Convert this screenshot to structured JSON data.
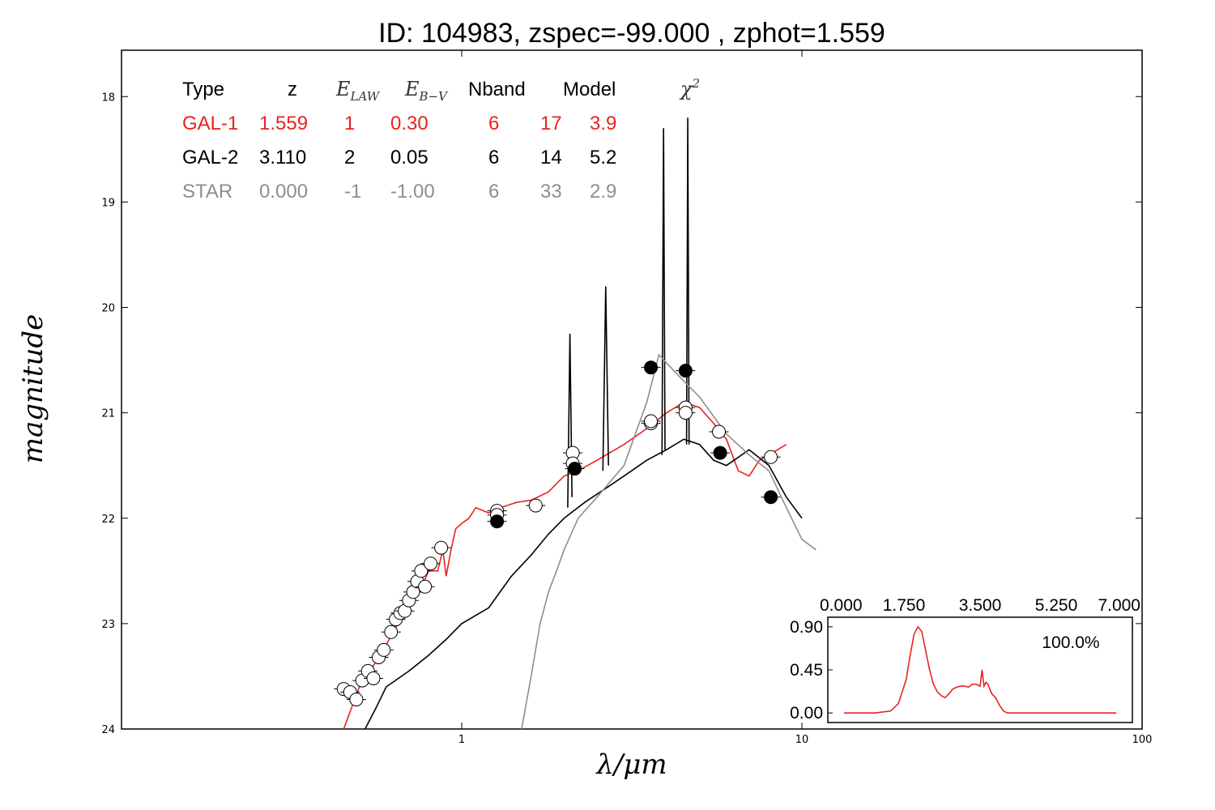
{
  "chart_data": {
    "type": "scatter",
    "title": "ID:  104983, zspec=-99.000 , zphot=1.559",
    "xlabel": "λ/μm",
    "ylabel": "magnitude",
    "x_scale": "log",
    "xlim": [
      0.1,
      100
    ],
    "ylim": [
      24,
      17.56
    ],
    "y_inverted": true,
    "xtick_labels": [
      "1",
      "10",
      "100"
    ],
    "ytick_labels": [
      "18",
      "19",
      "20",
      "21",
      "22",
      "23",
      "24"
    ],
    "colors": {
      "gal1": "#e8231f",
      "gal2": "#000000",
      "star": "#8e8e8e"
    },
    "fit_table": {
      "header": [
        "Type",
        "z",
        "E_LAW",
        "E_B-V",
        "Nband",
        "Model",
        "χ2"
      ],
      "rows": [
        {
          "name": "GAL-1",
          "cells": [
            "GAL-1",
            "1.559",
            "1",
            "0.30",
            "6",
            "17",
            "3.9"
          ]
        },
        {
          "name": "GAL-2",
          "cells": [
            "GAL-2",
            "3.110",
            "2",
            "0.05",
            "6",
            "14",
            "5.2"
          ]
        },
        {
          "name": "STAR",
          "cells": [
            "STAR",
            "0.000",
            "-1",
            "-1.00",
            "6",
            "33",
            "2.9"
          ]
        }
      ]
    },
    "series": [
      {
        "key": "gal1",
        "kind": "line",
        "points": [
          [
            0.45,
            24.0
          ],
          [
            0.5,
            23.6
          ],
          [
            0.55,
            23.4
          ],
          [
            0.6,
            23.2
          ],
          [
            0.65,
            23.0
          ],
          [
            0.7,
            22.85
          ],
          [
            0.75,
            22.7
          ],
          [
            0.8,
            22.5
          ],
          [
            0.85,
            22.5
          ],
          [
            0.88,
            22.3
          ],
          [
            0.9,
            22.55
          ],
          [
            0.93,
            22.3
          ],
          [
            0.96,
            22.1
          ],
          [
            1.0,
            22.05
          ],
          [
            1.05,
            22.0
          ],
          [
            1.1,
            21.9
          ],
          [
            1.2,
            21.95
          ],
          [
            1.3,
            21.9
          ],
          [
            1.45,
            21.85
          ],
          [
            1.6,
            21.83
          ],
          [
            1.8,
            21.75
          ],
          [
            2.0,
            21.6
          ],
          [
            2.2,
            21.55
          ],
          [
            2.5,
            21.45
          ],
          [
            3.0,
            21.3
          ],
          [
            3.5,
            21.15
          ],
          [
            4.0,
            21.0
          ],
          [
            4.5,
            20.9
          ],
          [
            5.0,
            20.95
          ],
          [
            5.5,
            21.1
          ],
          [
            6.0,
            21.25
          ],
          [
            6.5,
            21.55
          ],
          [
            7.0,
            21.6
          ],
          [
            7.5,
            21.45
          ],
          [
            8.0,
            21.4
          ],
          [
            9.0,
            21.3
          ]
        ]
      },
      {
        "key": "gal2",
        "kind": "line",
        "points": [
          [
            0.52,
            24.0
          ],
          [
            0.56,
            23.8
          ],
          [
            0.6,
            23.6
          ],
          [
            0.7,
            23.45
          ],
          [
            0.8,
            23.3
          ],
          [
            0.9,
            23.15
          ],
          [
            1.0,
            23.0
          ],
          [
            1.2,
            22.85
          ],
          [
            1.4,
            22.55
          ],
          [
            1.6,
            22.35
          ],
          [
            1.8,
            22.15
          ],
          [
            2.0,
            22.0
          ],
          [
            2.3,
            21.85
          ],
          [
            2.7,
            21.7
          ],
          [
            3.0,
            21.6
          ],
          [
            3.5,
            21.45
          ],
          [
            4.0,
            21.35
          ],
          [
            4.5,
            21.25
          ],
          [
            5.0,
            21.3
          ],
          [
            5.5,
            21.45
          ],
          [
            6.0,
            21.5
          ],
          [
            7.0,
            21.35
          ],
          [
            8.0,
            21.5
          ],
          [
            9.0,
            21.8
          ],
          [
            10.0,
            22.0
          ]
        ]
      },
      {
        "key": "gal2",
        "kind": "line",
        "points": [
          [
            2.05,
            21.9
          ],
          [
            2.08,
            20.25
          ],
          [
            2.11,
            21.8
          ]
        ]
      },
      {
        "key": "gal2",
        "kind": "line",
        "points": [
          [
            2.6,
            21.55
          ],
          [
            2.65,
            19.8
          ],
          [
            2.7,
            21.5
          ]
        ]
      },
      {
        "key": "gal2",
        "kind": "line",
        "points": [
          [
            3.88,
            21.4
          ],
          [
            3.92,
            18.3
          ],
          [
            3.96,
            21.35
          ]
        ]
      },
      {
        "key": "gal2",
        "kind": "line",
        "points": [
          [
            4.58,
            21.3
          ],
          [
            4.62,
            18.2
          ],
          [
            4.66,
            21.3
          ]
        ]
      },
      {
        "key": "star",
        "kind": "line",
        "points": [
          [
            1.5,
            24.0
          ],
          [
            1.6,
            23.5
          ],
          [
            1.7,
            23.0
          ],
          [
            1.8,
            22.7
          ],
          [
            1.9,
            22.5
          ],
          [
            2.0,
            22.3
          ],
          [
            2.2,
            22.0
          ],
          [
            2.5,
            21.8
          ],
          [
            3.0,
            21.5
          ],
          [
            3.5,
            20.9
          ],
          [
            3.8,
            20.45
          ],
          [
            4.2,
            20.6
          ],
          [
            4.5,
            20.7
          ],
          [
            5.0,
            20.85
          ],
          [
            6.0,
            21.2
          ],
          [
            7.0,
            21.4
          ],
          [
            8.0,
            21.55
          ],
          [
            9.0,
            21.9
          ],
          [
            10.0,
            22.2
          ],
          [
            11.0,
            22.3
          ]
        ]
      },
      {
        "key": "gal1",
        "kind": "open-points",
        "points": [
          [
            0.45,
            23.62
          ],
          [
            0.47,
            23.65
          ],
          [
            0.49,
            23.72
          ],
          [
            0.51,
            23.54
          ],
          [
            0.53,
            23.45
          ],
          [
            0.55,
            23.52
          ],
          [
            0.57,
            23.32
          ],
          [
            0.59,
            23.25
          ],
          [
            0.62,
            23.08
          ],
          [
            0.64,
            22.96
          ],
          [
            0.66,
            22.9
          ],
          [
            0.68,
            22.88
          ],
          [
            0.7,
            22.78
          ],
          [
            0.72,
            22.7
          ],
          [
            0.74,
            22.6
          ],
          [
            0.76,
            22.5
          ],
          [
            0.78,
            22.65
          ],
          [
            0.81,
            22.43
          ],
          [
            0.87,
            22.28
          ],
          [
            1.27,
            21.93
          ],
          [
            1.27,
            21.97
          ],
          [
            1.65,
            21.88
          ],
          [
            2.12,
            21.38
          ],
          [
            2.12,
            21.48
          ],
          [
            3.6,
            21.1
          ],
          [
            3.6,
            21.08
          ],
          [
            4.55,
            20.95
          ],
          [
            4.55,
            21.0
          ],
          [
            5.7,
            21.18
          ],
          [
            8.1,
            21.42
          ]
        ]
      },
      {
        "key": "gal2",
        "kind": "filled-points",
        "points": [
          [
            1.27,
            22.03
          ],
          [
            2.15,
            21.53
          ],
          [
            3.6,
            20.57
          ],
          [
            4.55,
            20.6
          ],
          [
            5.75,
            21.38
          ],
          [
            8.1,
            21.8
          ]
        ]
      }
    ],
    "inset": {
      "type": "line",
      "xtick_labels": [
        "0.000",
        "1.750",
        "3.500",
        "5.250",
        "7.000"
      ],
      "ytick_labels": [
        "0.90",
        "0.45",
        "0.00"
      ],
      "xlim": [
        0,
        7
      ],
      "ylim": [
        -0.1,
        1.0
      ],
      "annotation": "100.0%",
      "x": [
        0.0,
        0.4,
        0.8,
        1.2,
        1.4,
        1.6,
        1.7,
        1.8,
        1.9,
        2.0,
        2.1,
        2.2,
        2.3,
        2.4,
        2.5,
        2.6,
        2.7,
        2.8,
        2.9,
        3.0,
        3.1,
        3.2,
        3.3,
        3.4,
        3.5,
        3.55,
        3.6,
        3.65,
        3.7,
        3.8,
        3.9,
        4.0,
        4.1,
        4.2,
        4.4,
        4.8,
        5.2,
        5.6,
        6.0,
        6.4,
        6.8,
        7.0
      ],
      "values": [
        0.0,
        0.0,
        0.0,
        0.02,
        0.1,
        0.35,
        0.6,
        0.82,
        0.9,
        0.85,
        0.65,
        0.45,
        0.3,
        0.22,
        0.18,
        0.16,
        0.2,
        0.25,
        0.27,
        0.28,
        0.28,
        0.27,
        0.3,
        0.3,
        0.28,
        0.45,
        0.28,
        0.32,
        0.3,
        0.2,
        0.16,
        0.08,
        0.02,
        0.0,
        0.0,
        0.0,
        0.0,
        0.0,
        0.0,
        0.0,
        0.0,
        0.0
      ]
    }
  }
}
